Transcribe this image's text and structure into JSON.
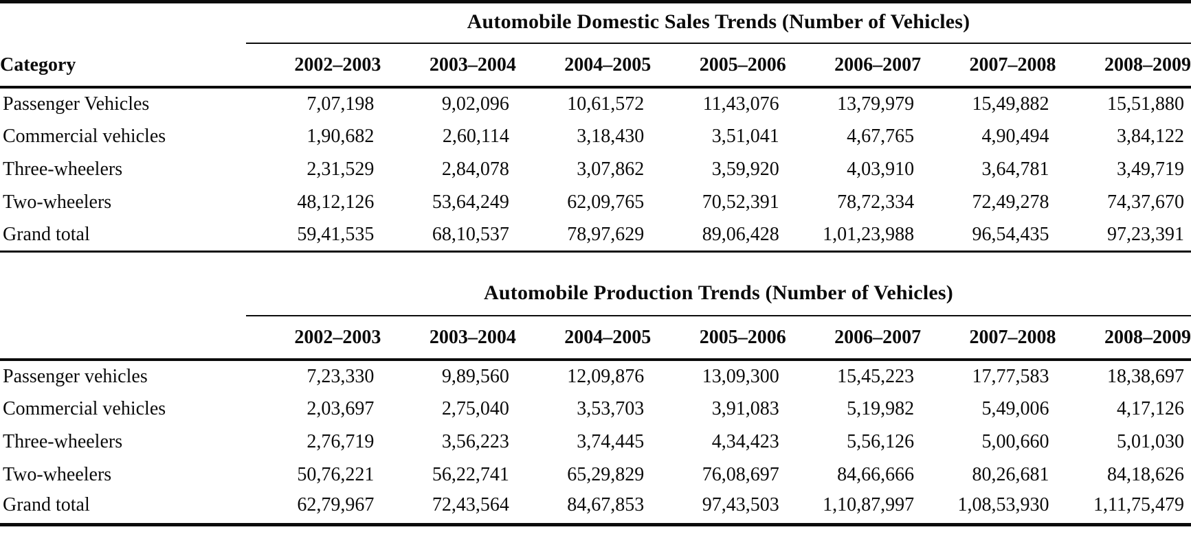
{
  "text_color": "#0b0b0b",
  "background_color": "#ffffff",
  "chart_data": [
    {
      "type": "table",
      "title": "Automobile Domestic Sales Trends (Number of Vehicles)",
      "category_header": "Category",
      "columns": [
        "2002–2003",
        "2003–2004",
        "2004–2005",
        "2005–2006",
        "2006–2007",
        "2007–2008",
        "2008–2009"
      ],
      "rows": [
        {
          "label": "Passenger Vehicles",
          "values": [
            "7,07,198",
            "9,02,096",
            "10,61,572",
            "11,43,076",
            "13,79,979",
            "15,49,882",
            "15,51,880"
          ]
        },
        {
          "label": "Commercial vehicles",
          "values": [
            "1,90,682",
            "2,60,114",
            "3,18,430",
            "3,51,041",
            "4,67,765",
            "4,90,494",
            "3,84,122"
          ]
        },
        {
          "label": "Three-wheelers",
          "values": [
            "2,31,529",
            "2,84,078",
            "3,07,862",
            "3,59,920",
            "4,03,910",
            "3,64,781",
            "3,49,719"
          ]
        },
        {
          "label": "Two-wheelers",
          "values": [
            "48,12,126",
            "53,64,249",
            "62,09,765",
            "70,52,391",
            "78,72,334",
            "72,49,278",
            "74,37,670"
          ]
        },
        {
          "label": "Grand total",
          "values": [
            "59,41,535",
            "68,10,537",
            "78,97,629",
            "89,06,428",
            "1,01,23,988",
            "96,54,435",
            "97,23,391"
          ]
        }
      ]
    },
    {
      "type": "table",
      "title": "Automobile Production Trends (Number of Vehicles)",
      "category_header": "",
      "columns": [
        "2002–2003",
        "2003–2004",
        "2004–2005",
        "2005–2006",
        "2006–2007",
        "2007–2008",
        "2008–2009"
      ],
      "rows": [
        {
          "label": "Passenger vehicles",
          "values": [
            "7,23,330",
            "9,89,560",
            "12,09,876",
            "13,09,300",
            "15,45,223",
            "17,77,583",
            "18,38,697"
          ]
        },
        {
          "label": "Commercial vehicles",
          "values": [
            "2,03,697",
            "2,75,040",
            "3,53,703",
            "3,91,083",
            "5,19,982",
            "5,49,006",
            "4,17,126"
          ]
        },
        {
          "label": "Three-wheelers",
          "values": [
            "2,76,719",
            "3,56,223",
            "3,74,445",
            "4,34,423",
            "5,56,126",
            "5,00,660",
            "5,01,030"
          ]
        },
        {
          "label": "Two-wheelers",
          "values": [
            "50,76,221",
            "56,22,741",
            "65,29,829",
            "76,08,697",
            "84,66,666",
            "80,26,681",
            "84,18,626"
          ]
        },
        {
          "label": "Grand total",
          "values": [
            "62,79,967",
            "72,43,564",
            "84,67,853",
            "97,43,503",
            "1,10,87,997",
            "1,08,53,930",
            "1,11,75,479"
          ]
        }
      ]
    }
  ]
}
